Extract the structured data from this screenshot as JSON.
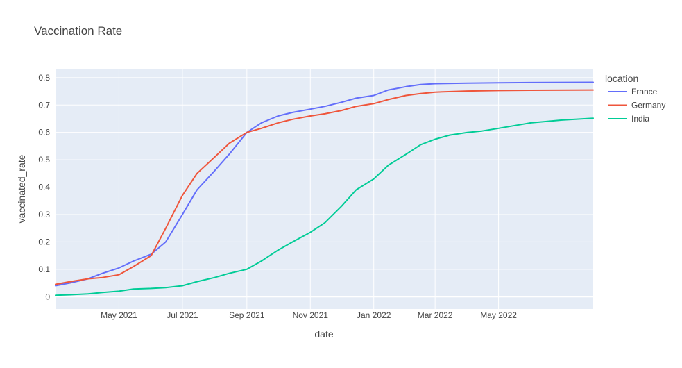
{
  "chart_data": {
    "type": "line",
    "title": "Vaccination Rate",
    "xlabel": "date",
    "ylabel": "vaccinated_rate",
    "legend_title": "location",
    "legend_position": "right",
    "grid": true,
    "x_range": [
      "2021-03-01",
      "2022-07-31"
    ],
    "ylim": [
      -0.045,
      0.83
    ],
    "x_ticks": [
      {
        "date": "2021-05-01",
        "label": "May 2021"
      },
      {
        "date": "2021-07-01",
        "label": "Jul 2021"
      },
      {
        "date": "2021-09-01",
        "label": "Sep 2021"
      },
      {
        "date": "2021-11-01",
        "label": "Nov 2021"
      },
      {
        "date": "2022-01-01",
        "label": "Jan 2022"
      },
      {
        "date": "2022-03-01",
        "label": "Mar 2022"
      },
      {
        "date": "2022-05-01",
        "label": "May 2022"
      }
    ],
    "y_ticks": [
      {
        "value": 0,
        "label": "0"
      },
      {
        "value": 0.1,
        "label": "0.1"
      },
      {
        "value": 0.2,
        "label": "0.2"
      },
      {
        "value": 0.3,
        "label": "0.3"
      },
      {
        "value": 0.4,
        "label": "0.4"
      },
      {
        "value": 0.5,
        "label": "0.5"
      },
      {
        "value": 0.6,
        "label": "0.6"
      },
      {
        "value": 0.7,
        "label": "0.7"
      },
      {
        "value": 0.8,
        "label": "0.8"
      }
    ],
    "series": [
      {
        "name": "France",
        "color": "#636efa",
        "points": [
          [
            "2021-03-01",
            0.04
          ],
          [
            "2021-03-15",
            0.05
          ],
          [
            "2021-04-01",
            0.065
          ],
          [
            "2021-04-15",
            0.085
          ],
          [
            "2021-05-01",
            0.105
          ],
          [
            "2021-05-15",
            0.13
          ],
          [
            "2021-06-01",
            0.155
          ],
          [
            "2021-06-15",
            0.2
          ],
          [
            "2021-07-01",
            0.3
          ],
          [
            "2021-07-15",
            0.39
          ],
          [
            "2021-08-01",
            0.46
          ],
          [
            "2021-08-15",
            0.52
          ],
          [
            "2021-09-01",
            0.6
          ],
          [
            "2021-09-15",
            0.635
          ],
          [
            "2021-10-01",
            0.66
          ],
          [
            "2021-10-15",
            0.673
          ],
          [
            "2021-11-01",
            0.685
          ],
          [
            "2021-11-15",
            0.695
          ],
          [
            "2021-12-01",
            0.71
          ],
          [
            "2021-12-15",
            0.725
          ],
          [
            "2022-01-01",
            0.735
          ],
          [
            "2022-01-15",
            0.755
          ],
          [
            "2022-02-01",
            0.767
          ],
          [
            "2022-02-15",
            0.775
          ],
          [
            "2022-03-01",
            0.778
          ],
          [
            "2022-04-01",
            0.78
          ],
          [
            "2022-05-01",
            0.781
          ],
          [
            "2022-06-01",
            0.782
          ],
          [
            "2022-07-31",
            0.783
          ]
        ]
      },
      {
        "name": "Germany",
        "color": "#ef553b",
        "points": [
          [
            "2021-03-01",
            0.045
          ],
          [
            "2021-03-15",
            0.055
          ],
          [
            "2021-04-01",
            0.065
          ],
          [
            "2021-04-15",
            0.07
          ],
          [
            "2021-05-01",
            0.08
          ],
          [
            "2021-05-15",
            0.11
          ],
          [
            "2021-06-01",
            0.15
          ],
          [
            "2021-06-15",
            0.25
          ],
          [
            "2021-07-01",
            0.37
          ],
          [
            "2021-07-15",
            0.45
          ],
          [
            "2021-08-01",
            0.51
          ],
          [
            "2021-08-15",
            0.56
          ],
          [
            "2021-09-01",
            0.6
          ],
          [
            "2021-09-15",
            0.615
          ],
          [
            "2021-10-01",
            0.635
          ],
          [
            "2021-10-15",
            0.648
          ],
          [
            "2021-11-01",
            0.66
          ],
          [
            "2021-11-15",
            0.668
          ],
          [
            "2021-12-01",
            0.68
          ],
          [
            "2021-12-15",
            0.695
          ],
          [
            "2022-01-01",
            0.705
          ],
          [
            "2022-01-15",
            0.72
          ],
          [
            "2022-02-01",
            0.735
          ],
          [
            "2022-02-15",
            0.742
          ],
          [
            "2022-03-01",
            0.747
          ],
          [
            "2022-04-01",
            0.751
          ],
          [
            "2022-05-01",
            0.753
          ],
          [
            "2022-06-01",
            0.754
          ],
          [
            "2022-07-31",
            0.755
          ]
        ]
      },
      {
        "name": "India",
        "color": "#00cc96",
        "points": [
          [
            "2021-03-01",
            0.005
          ],
          [
            "2021-03-15",
            0.007
          ],
          [
            "2021-04-01",
            0.01
          ],
          [
            "2021-04-15",
            0.015
          ],
          [
            "2021-05-01",
            0.02
          ],
          [
            "2021-05-15",
            0.028
          ],
          [
            "2021-06-01",
            0.03
          ],
          [
            "2021-06-15",
            0.033
          ],
          [
            "2021-07-01",
            0.04
          ],
          [
            "2021-07-15",
            0.055
          ],
          [
            "2021-08-01",
            0.07
          ],
          [
            "2021-08-15",
            0.085
          ],
          [
            "2021-09-01",
            0.1
          ],
          [
            "2021-09-15",
            0.13
          ],
          [
            "2021-10-01",
            0.17
          ],
          [
            "2021-10-15",
            0.2
          ],
          [
            "2021-11-01",
            0.235
          ],
          [
            "2021-11-15",
            0.27
          ],
          [
            "2021-12-01",
            0.33
          ],
          [
            "2021-12-15",
            0.39
          ],
          [
            "2022-01-01",
            0.43
          ],
          [
            "2022-01-15",
            0.48
          ],
          [
            "2022-02-01",
            0.52
          ],
          [
            "2022-02-15",
            0.555
          ],
          [
            "2022-03-01",
            0.575
          ],
          [
            "2022-03-15",
            0.59
          ],
          [
            "2022-04-01",
            0.6
          ],
          [
            "2022-04-15",
            0.605
          ],
          [
            "2022-05-01",
            0.615
          ],
          [
            "2022-06-01",
            0.635
          ],
          [
            "2022-07-01",
            0.645
          ],
          [
            "2022-07-31",
            0.652
          ]
        ]
      }
    ]
  }
}
